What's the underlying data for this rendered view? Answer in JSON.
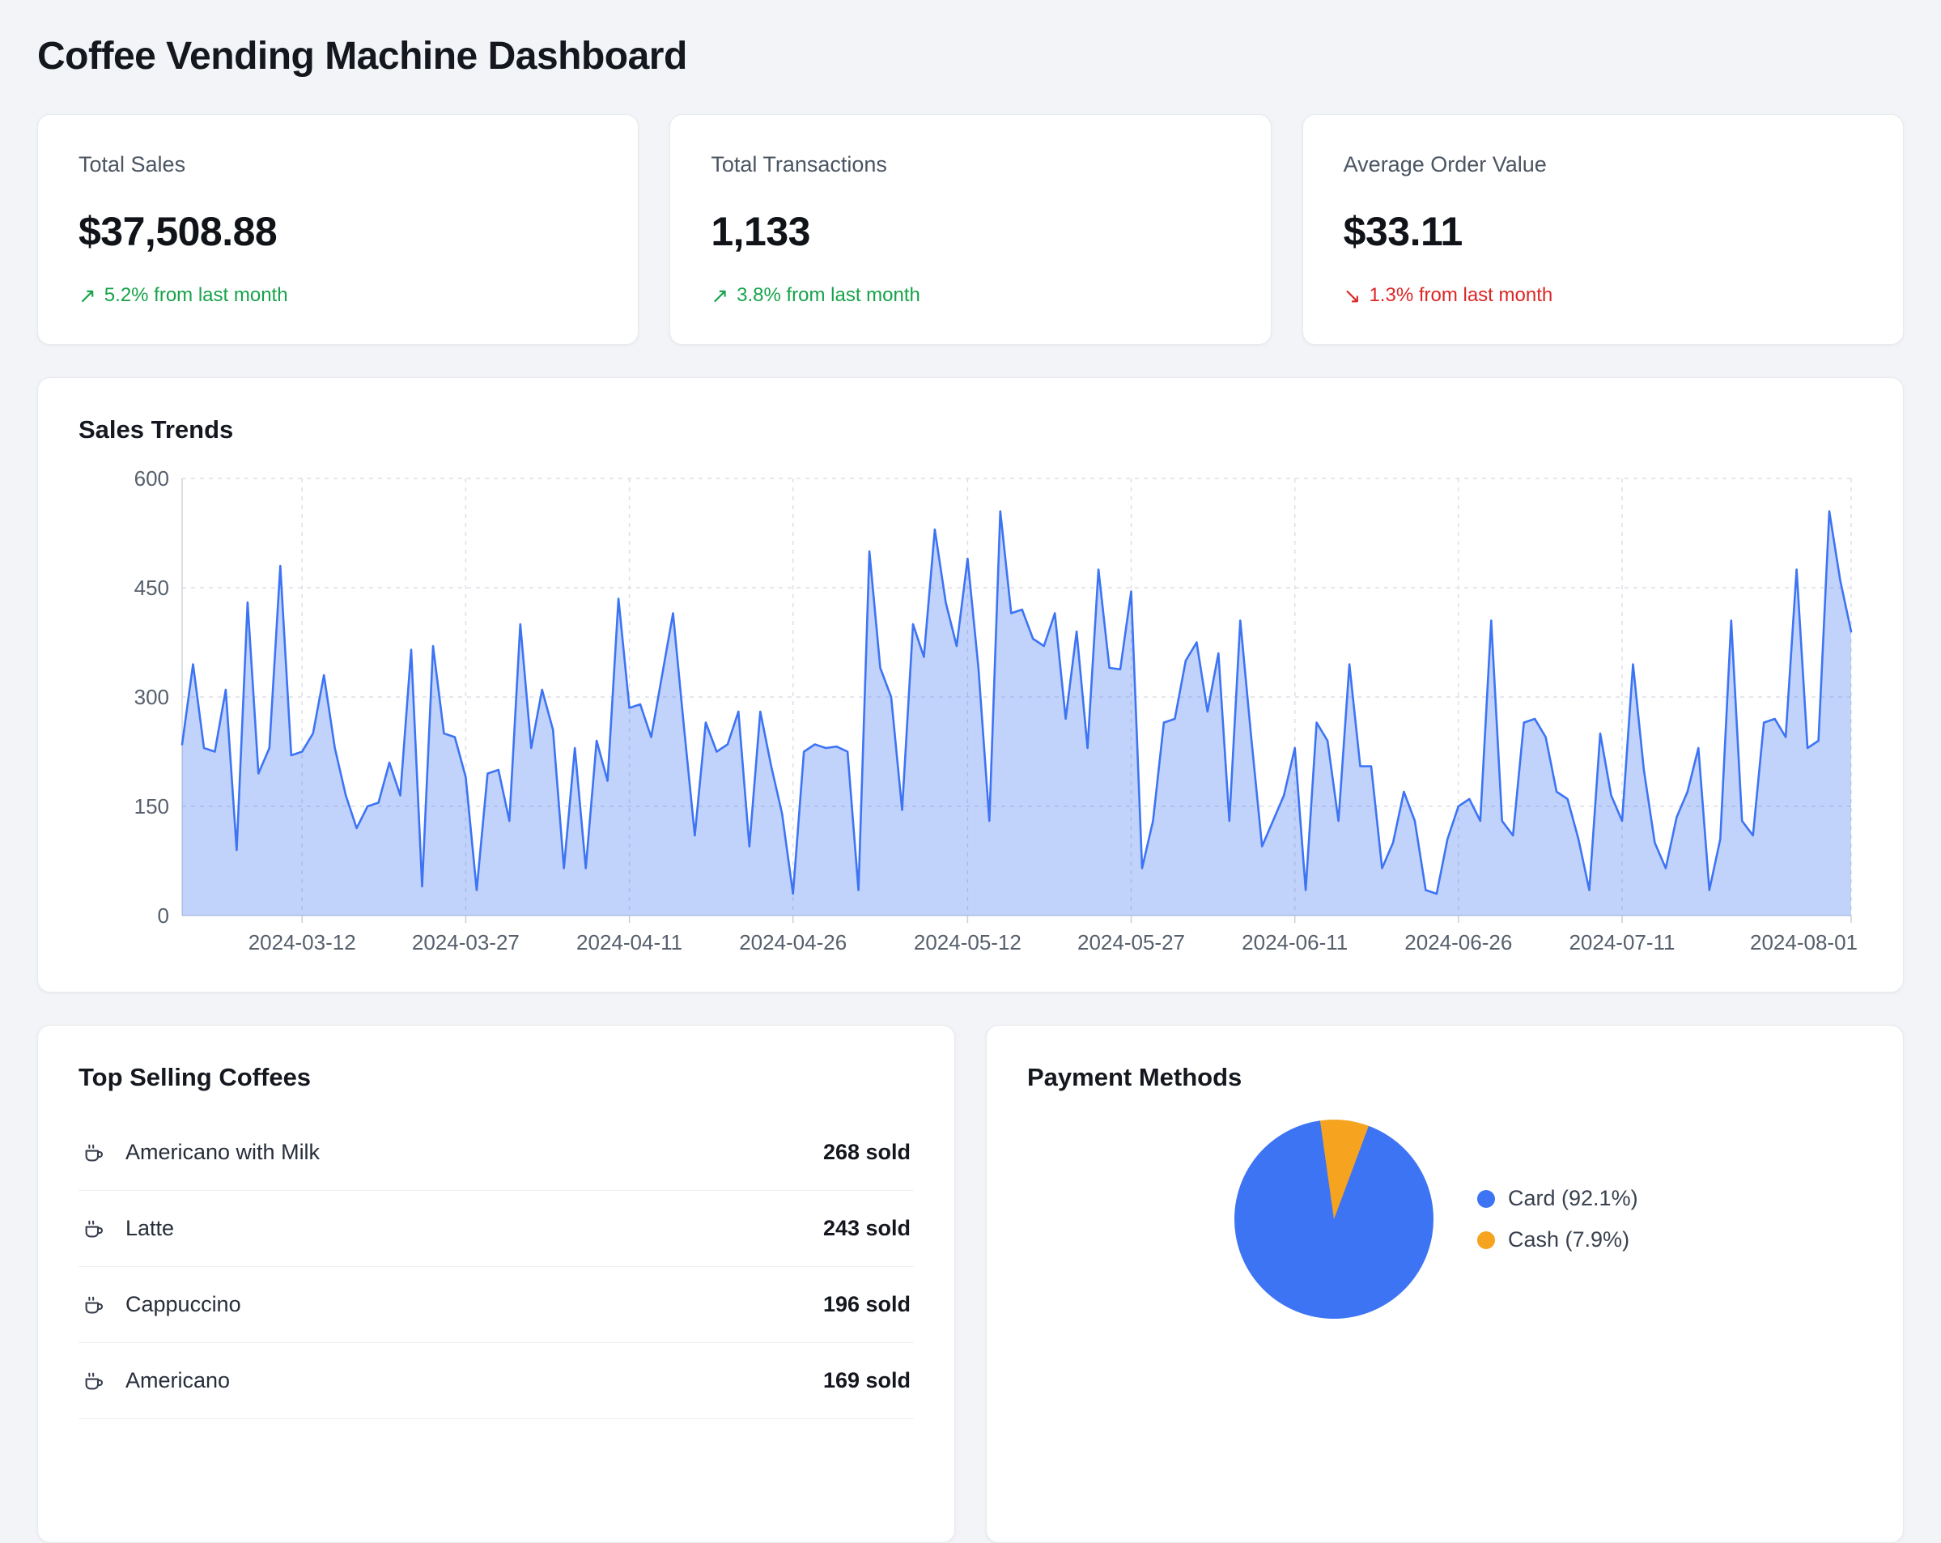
{
  "title": "Coffee Vending Machine Dashboard",
  "icons": {
    "up": "↗",
    "down": "↘"
  },
  "stats": [
    {
      "label": "Total Sales",
      "value": "$37,508.88",
      "trend": "5.2% from last month",
      "direction": "up"
    },
    {
      "label": "Total Transactions",
      "value": "1,133",
      "trend": "3.8% from last month",
      "direction": "up"
    },
    {
      "label": "Average Order Value",
      "value": "$33.11",
      "trend": "1.3% from last month",
      "direction": "down"
    }
  ],
  "chart_data": [
    {
      "type": "area",
      "title": "Sales Trends",
      "xlabel": "",
      "ylabel": "",
      "ylim": [
        0,
        600
      ],
      "yticks": [
        0,
        150,
        300,
        450,
        600
      ],
      "grid": true,
      "legend_position": "none",
      "line_color": "#3d74f4",
      "fill_color": "rgba(61,116,244,0.32)",
      "grid_color": "#dcdfe5",
      "xtick_labels": [
        "2024-03-12",
        "2024-03-27",
        "2024-04-11",
        "2024-04-26",
        "2024-05-12",
        "2024-05-27",
        "2024-06-11",
        "2024-06-26",
        "2024-07-11",
        "2024-08-01"
      ],
      "xtick_indices": [
        11,
        26,
        41,
        56,
        72,
        87,
        102,
        117,
        132,
        153
      ],
      "values": [
        235,
        345,
        230,
        225,
        310,
        90,
        430,
        195,
        230,
        480,
        220,
        225,
        250,
        330,
        230,
        165,
        120,
        150,
        155,
        210,
        165,
        365,
        40,
        370,
        250,
        245,
        190,
        35,
        195,
        200,
        130,
        400,
        230,
        310,
        255,
        65,
        230,
        65,
        240,
        185,
        435,
        285,
        290,
        245,
        330,
        415,
        260,
        110,
        265,
        225,
        235,
        280,
        95,
        280,
        205,
        140,
        30,
        225,
        235,
        230,
        232,
        225,
        35,
        500,
        340,
        300,
        145,
        400,
        355,
        530,
        430,
        370,
        490,
        340,
        130,
        555,
        415,
        420,
        380,
        370,
        415,
        270,
        390,
        230,
        475,
        340,
        338,
        445,
        65,
        130,
        265,
        270,
        350,
        375,
        280,
        360,
        130,
        405,
        245,
        95,
        130,
        165,
        230,
        35,
        265,
        240,
        130,
        345,
        205,
        205,
        65,
        100,
        170,
        130,
        35,
        30,
        105,
        150,
        160,
        130,
        405,
        130,
        110,
        265,
        270,
        245,
        170,
        160,
        105,
        35,
        250,
        165,
        130,
        345,
        200,
        100,
        65,
        135,
        170,
        230,
        35,
        105,
        405,
        130,
        110,
        265,
        270,
        245,
        475,
        230,
        240,
        555,
        460,
        390
      ]
    },
    {
      "type": "pie",
      "title": "Payment Methods",
      "labels": [
        "Card",
        "Cash"
      ],
      "values": [
        92.1,
        7.9
      ],
      "legend": [
        "Card (92.1%)",
        "Cash (7.9%)"
      ],
      "colors": [
        "#3d74f4",
        "#f6a41f"
      ],
      "rotation_deg": -8,
      "legend_position": "right"
    }
  ],
  "top_selling": {
    "title": "Top Selling Coffees",
    "items": [
      {
        "name": "Americano with Milk",
        "sold": "268 sold"
      },
      {
        "name": "Latte",
        "sold": "243 sold"
      },
      {
        "name": "Cappuccino",
        "sold": "196 sold"
      },
      {
        "name": "Americano",
        "sold": "169 sold"
      }
    ]
  }
}
